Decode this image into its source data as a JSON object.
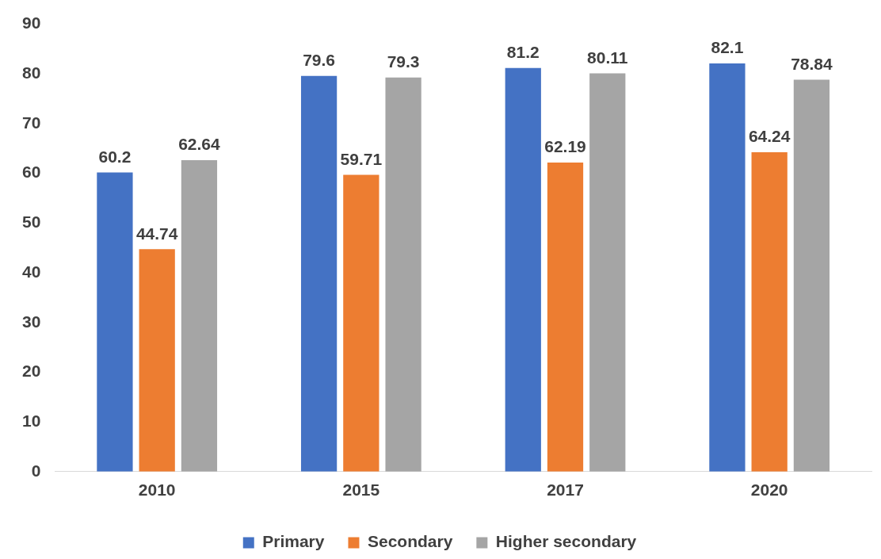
{
  "chart_data": {
    "type": "bar",
    "categories": [
      "2010",
      "2015",
      "2017",
      "2020"
    ],
    "series": [
      {
        "name": "Primary",
        "color": "#4472c4",
        "values": [
          60.2,
          79.6,
          81.2,
          82.1
        ]
      },
      {
        "name": "Secondary",
        "color": "#ed7d31",
        "values": [
          44.74,
          59.71,
          62.19,
          64.24
        ]
      },
      {
        "name": "Higher secondary",
        "color": "#a5a5a5",
        "values": [
          62.64,
          79.3,
          80.11,
          78.84
        ]
      }
    ],
    "ylim": [
      0,
      90
    ],
    "yticks": [
      0,
      10,
      20,
      30,
      40,
      50,
      60,
      70,
      80,
      90
    ],
    "grid": false,
    "legend": "bottom",
    "data_labels": true
  }
}
